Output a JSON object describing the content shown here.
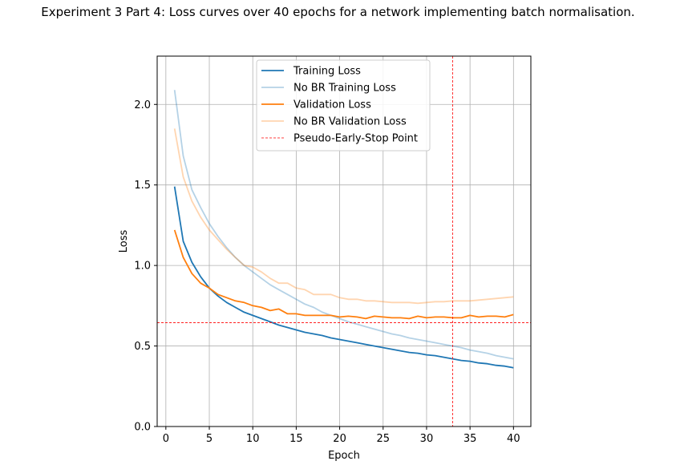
{
  "chart_data": {
    "type": "line",
    "title": "Experiment 3 Part 4: Loss curves over 40 epochs for a network implementing batch normalisation.",
    "xlabel": "Epoch",
    "ylabel": "Loss",
    "xlim": [
      -1,
      42
    ],
    "ylim": [
      0.0,
      2.3
    ],
    "xticks": [
      0,
      5,
      10,
      15,
      20,
      25,
      30,
      35,
      40
    ],
    "yticks": [
      0.0,
      0.5,
      1.0,
      1.5,
      2.0
    ],
    "xtick_labels": [
      "0",
      "5",
      "10",
      "15",
      "20",
      "25",
      "30",
      "35",
      "40"
    ],
    "ytick_labels": [
      "0.0",
      "0.5",
      "1.0",
      "1.5",
      "2.0"
    ],
    "grid": true,
    "legend_position": "top-center",
    "x": [
      1,
      2,
      3,
      4,
      5,
      6,
      7,
      8,
      9,
      10,
      11,
      12,
      13,
      14,
      15,
      16,
      17,
      18,
      19,
      20,
      21,
      22,
      23,
      24,
      25,
      26,
      27,
      28,
      29,
      30,
      31,
      32,
      33,
      34,
      35,
      36,
      37,
      38,
      39,
      40
    ],
    "series": [
      {
        "name": "Training Loss",
        "color": "#1f77b4",
        "alpha": 1.0,
        "values": [
          1.49,
          1.15,
          1.02,
          0.93,
          0.86,
          0.81,
          0.77,
          0.74,
          0.71,
          0.69,
          0.67,
          0.65,
          0.63,
          0.615,
          0.6,
          0.585,
          0.575,
          0.565,
          0.55,
          0.54,
          0.53,
          0.52,
          0.51,
          0.5,
          0.49,
          0.48,
          0.47,
          0.46,
          0.455,
          0.445,
          0.44,
          0.43,
          0.42,
          0.41,
          0.405,
          0.395,
          0.39,
          0.38,
          0.375,
          0.365
        ]
      },
      {
        "name": "No BR Training Loss",
        "color": "#1f77b4",
        "alpha": 0.33,
        "values": [
          2.09,
          1.68,
          1.47,
          1.36,
          1.26,
          1.18,
          1.11,
          1.05,
          1.0,
          0.96,
          0.92,
          0.88,
          0.85,
          0.82,
          0.79,
          0.76,
          0.74,
          0.71,
          0.69,
          0.67,
          0.65,
          0.635,
          0.62,
          0.605,
          0.59,
          0.575,
          0.565,
          0.55,
          0.54,
          0.53,
          0.52,
          0.51,
          0.5,
          0.49,
          0.475,
          0.465,
          0.455,
          0.44,
          0.43,
          0.42
        ]
      },
      {
        "name": "Validation Loss",
        "color": "#ff7f0e",
        "alpha": 1.0,
        "values": [
          1.22,
          1.05,
          0.95,
          0.89,
          0.86,
          0.82,
          0.8,
          0.78,
          0.77,
          0.75,
          0.74,
          0.72,
          0.73,
          0.7,
          0.7,
          0.69,
          0.69,
          0.69,
          0.69,
          0.68,
          0.685,
          0.68,
          0.67,
          0.685,
          0.68,
          0.675,
          0.675,
          0.67,
          0.685,
          0.675,
          0.68,
          0.68,
          0.675,
          0.675,
          0.69,
          0.68,
          0.685,
          0.685,
          0.68,
          0.695
        ]
      },
      {
        "name": "No BR Validation Loss",
        "color": "#ff7f0e",
        "alpha": 0.33,
        "values": [
          1.85,
          1.55,
          1.4,
          1.3,
          1.22,
          1.16,
          1.1,
          1.05,
          1.0,
          0.99,
          0.96,
          0.92,
          0.89,
          0.89,
          0.86,
          0.85,
          0.82,
          0.82,
          0.82,
          0.8,
          0.79,
          0.79,
          0.78,
          0.78,
          0.775,
          0.77,
          0.77,
          0.77,
          0.765,
          0.77,
          0.775,
          0.775,
          0.78,
          0.78,
          0.78,
          0.785,
          0.79,
          0.795,
          0.8,
          0.805
        ]
      }
    ],
    "reference_lines": [
      {
        "name": "Pseudo-Early-Stop Point",
        "orientation": "vertical",
        "x": 33,
        "color": "#ff0000",
        "style": "dashed"
      },
      {
        "orientation": "horizontal",
        "y": 0.645,
        "color": "#ff0000",
        "style": "dashed"
      }
    ],
    "legend": [
      {
        "label": "Training Loss",
        "color": "#1f77b4",
        "alpha": 1.0,
        "style": "solid"
      },
      {
        "label": "No BR Training Loss",
        "color": "#1f77b4",
        "alpha": 0.33,
        "style": "solid"
      },
      {
        "label": "Validation Loss",
        "color": "#ff7f0e",
        "alpha": 1.0,
        "style": "solid"
      },
      {
        "label": "No BR Validation Loss",
        "color": "#ff7f0e",
        "alpha": 0.33,
        "style": "solid"
      },
      {
        "label": "Pseudo-Early-Stop Point",
        "color": "#ff0000",
        "alpha": 1.0,
        "style": "dashed"
      }
    ]
  }
}
